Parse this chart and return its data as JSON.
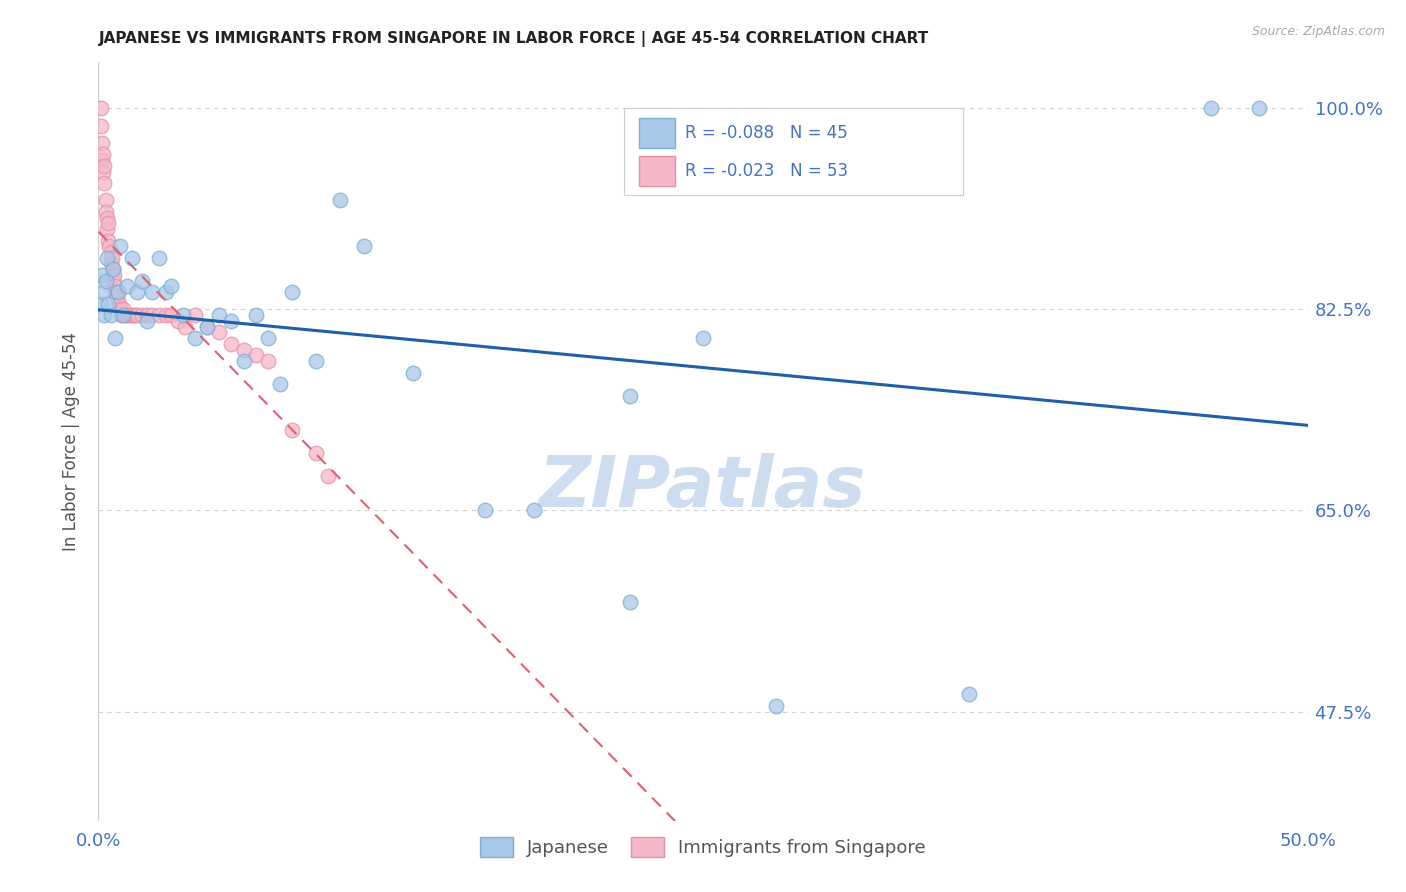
{
  "title": "JAPANESE VS IMMIGRANTS FROM SINGAPORE IN LABOR FORCE | AGE 45-54 CORRELATION CHART",
  "source": "Source: ZipAtlas.com",
  "ylabel": "In Labor Force | Age 45-54",
  "x_range": [
    0.0,
    50.0
  ],
  "y_range": [
    38.0,
    104.0
  ],
  "y_ticks": [
    47.5,
    65.0,
    82.5,
    100.0
  ],
  "y_tick_labels": [
    "47.5%",
    "65.0%",
    "82.5%",
    "100.0%"
  ],
  "x_tick_left": "0.0%",
  "x_tick_right": "50.0%",
  "legend_r1": "R = -0.088",
  "legend_n1": "N = 45",
  "legend_r2": "R = -0.023",
  "legend_n2": "N = 53",
  "color_blue": "#a8c8e8",
  "color_blue_edge": "#7aafd4",
  "color_pink": "#f4b8c8",
  "color_pink_edge": "#e890a8",
  "color_blue_line": "#1e5fa8",
  "color_pink_line": "#e06070",
  "color_grid": "#d0d0d0",
  "watermark_color": "#ccddf0",
  "japanese_x": [
    0.1,
    0.15,
    0.2,
    0.25,
    0.3,
    0.35,
    0.4,
    0.5,
    0.6,
    0.7,
    0.8,
    0.9,
    1.0,
    1.2,
    1.4,
    1.6,
    1.8,
    2.0,
    2.2,
    2.5,
    2.8,
    3.0,
    3.5,
    4.0,
    4.5,
    5.0,
    5.5,
    6.0,
    6.5,
    7.0,
    7.5,
    8.0,
    9.0,
    10.0,
    11.0,
    13.0,
    16.0,
    18.0,
    22.0,
    25.0,
    28.0,
    36.0,
    46.0,
    48.0,
    22.0
  ],
  "japanese_y": [
    83.0,
    85.5,
    84.0,
    82.0,
    85.0,
    87.0,
    83.0,
    82.0,
    86.0,
    80.0,
    84.0,
    88.0,
    82.0,
    84.5,
    87.0,
    84.0,
    85.0,
    81.5,
    84.0,
    87.0,
    84.0,
    84.5,
    82.0,
    80.0,
    81.0,
    82.0,
    81.5,
    78.0,
    82.0,
    80.0,
    76.0,
    84.0,
    78.0,
    92.0,
    88.0,
    77.0,
    65.0,
    65.0,
    57.0,
    80.0,
    48.0,
    49.0,
    100.0,
    100.0,
    75.0
  ],
  "singapore_x": [
    0.1,
    0.1,
    0.15,
    0.15,
    0.2,
    0.2,
    0.25,
    0.25,
    0.3,
    0.3,
    0.35,
    0.35,
    0.4,
    0.4,
    0.45,
    0.5,
    0.5,
    0.55,
    0.6,
    0.6,
    0.65,
    0.7,
    0.7,
    0.75,
    0.8,
    0.85,
    0.9,
    0.95,
    1.0,
    1.1,
    1.2,
    1.3,
    1.4,
    1.5,
    1.6,
    1.8,
    2.0,
    2.2,
    2.5,
    2.8,
    3.0,
    3.3,
    3.6,
    4.0,
    4.5,
    5.0,
    5.5,
    6.0,
    6.5,
    7.0,
    8.0,
    9.0,
    9.5
  ],
  "singapore_y": [
    100.0,
    98.5,
    97.0,
    95.5,
    96.0,
    94.5,
    95.0,
    93.5,
    92.0,
    91.0,
    90.5,
    89.5,
    90.0,
    88.5,
    88.0,
    87.5,
    86.5,
    87.0,
    86.0,
    85.0,
    85.5,
    84.5,
    84.0,
    83.5,
    84.0,
    83.0,
    82.5,
    82.0,
    82.5,
    82.0,
    82.0,
    82.0,
    82.0,
    82.0,
    82.0,
    82.0,
    82.0,
    82.0,
    82.0,
    82.0,
    82.0,
    81.5,
    81.0,
    82.0,
    81.0,
    80.5,
    79.5,
    79.0,
    78.5,
    78.0,
    72.0,
    70.0,
    68.0
  ]
}
